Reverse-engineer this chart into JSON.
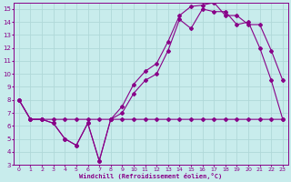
{
  "xlabel": "Windchill (Refroidissement éolien,°C)",
  "bg_color": "#c8ecec",
  "grid_color": "#b0d8d8",
  "line_color": "#880088",
  "xlim": [
    -0.5,
    23.5
  ],
  "ylim": [
    3,
    15.5
  ],
  "xticks": [
    0,
    1,
    2,
    3,
    4,
    5,
    6,
    7,
    8,
    9,
    10,
    11,
    12,
    13,
    14,
    15,
    16,
    17,
    18,
    19,
    20,
    21,
    22,
    23
  ],
  "yticks": [
    3,
    4,
    5,
    6,
    7,
    8,
    9,
    10,
    11,
    12,
    13,
    14,
    15
  ],
  "line1_x": [
    0,
    1,
    2,
    3,
    4,
    5,
    6,
    7,
    8,
    9,
    10,
    11,
    12,
    13,
    14,
    15,
    16,
    17,
    18,
    19,
    20,
    21,
    22,
    23
  ],
  "line1_y": [
    8.0,
    6.5,
    6.5,
    6.5,
    6.5,
    6.5,
    6.5,
    6.5,
    6.5,
    6.5,
    6.5,
    6.5,
    6.5,
    6.5,
    6.5,
    6.5,
    6.5,
    6.5,
    6.5,
    6.5,
    6.5,
    6.5,
    6.5,
    6.5
  ],
  "line2_x": [
    0,
    1,
    2,
    3,
    4,
    5,
    6,
    7,
    8,
    9,
    10,
    11,
    12,
    13,
    14,
    15,
    16,
    17,
    18,
    19,
    20,
    21,
    22,
    23
  ],
  "line2_y": [
    8.0,
    6.5,
    6.5,
    6.2,
    5.0,
    4.5,
    6.2,
    3.3,
    6.5,
    7.0,
    8.5,
    9.5,
    10.0,
    11.8,
    14.2,
    13.5,
    15.0,
    14.8,
    14.8,
    13.8,
    14.0,
    12.0,
    9.5,
    6.5
  ],
  "line3_x": [
    0,
    1,
    2,
    3,
    4,
    5,
    6,
    7,
    8,
    9,
    10,
    11,
    12,
    13,
    14,
    15,
    16,
    17,
    18,
    19,
    20,
    21,
    22,
    23
  ],
  "line3_y": [
    8.0,
    6.5,
    6.5,
    6.2,
    5.0,
    4.5,
    6.2,
    3.3,
    6.5,
    7.5,
    9.2,
    10.2,
    10.8,
    12.5,
    14.5,
    15.2,
    15.3,
    15.5,
    14.5,
    14.5,
    13.8,
    13.8,
    11.8,
    9.5
  ]
}
